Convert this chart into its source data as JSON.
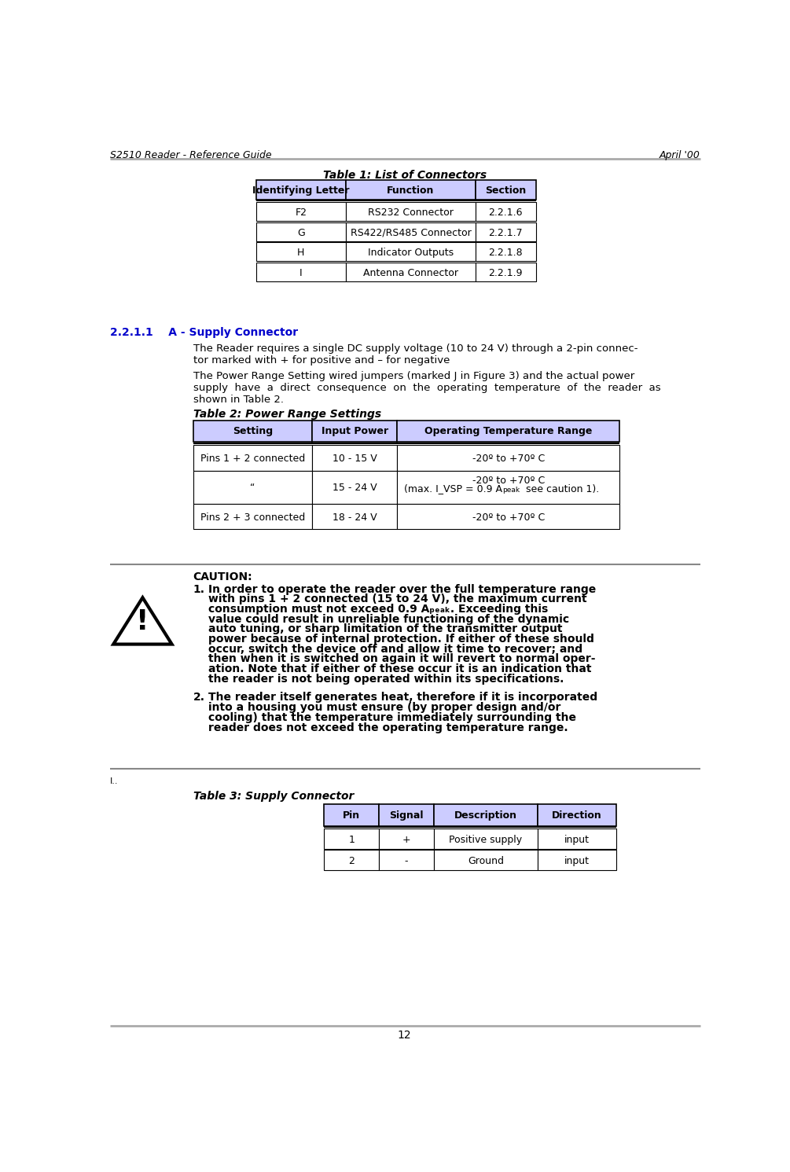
{
  "page_title_left": "S2510 Reader - Reference Guide",
  "page_title_right": "April '00",
  "page_number": "12",
  "table1_title": "Table 1: List of Connectors",
  "table1_header": [
    "Identifying Letter",
    "Function",
    "Section"
  ],
  "table1_header_bg": "#ccccff",
  "table1_rows": [
    [
      "F2",
      "RS232 Connector",
      "2.2.1.6"
    ],
    [
      "G",
      "RS422/RS485 Connector",
      "2.2.1.7"
    ],
    [
      "H",
      "Indicator Outputs",
      "2.2.1.8"
    ],
    [
      "I",
      "Antenna Connector",
      "2.2.1.9"
    ]
  ],
  "section_heading_num": "2.2.1.1",
  "section_heading_txt": "A - Supply Connector",
  "section_heading_color": "#0000cc",
  "para1": "The Reader requires a single DC supply voltage (10 to 24 V) through a 2-pin connec-\ntor marked with + for positive and – for negative",
  "para2": "The Power Range Setting wired jumpers (marked J in Figure 3) and the actual power\nsupply  have  a  direct  consequence  on  the  operating  temperature  of  the  reader  as\nshown in Table 2.",
  "table2_title": "Table 2: Power Range Settings",
  "table2_header": [
    "Setting",
    "Input Power",
    "Operating Temperature Range"
  ],
  "table2_header_bg": "#ccccff",
  "table2_rows": [
    [
      "Pins 1 + 2 connected",
      "10 - 15 V",
      "-20º to +70º C"
    ],
    [
      "“",
      "15 - 24 V",
      "-20º to +70º C"
    ],
    [
      "Pins 2 + 3 connected",
      "18 - 24 V",
      "-20º to +70º C"
    ]
  ],
  "table2_row2_extra": "(max. I_VSP = 0.9 A",
  "table2_row2_sub": "peak",
  "table2_row2_end": " see caution 1).",
  "caution_title": "CAUTION:",
  "caution1_prefix": "1.",
  "caution1_text": "In order to operate the reader over the full temperature range\nwith pins 1 + 2 connected (15 to 24 V), the maximum current\nconsumption must not exceed 0.9 A",
  "caution1_sub": "peak",
  "caution1_end": ". Exceeding this\nvalue could result in unreliable functioning of the dynamic\nauto tuning, or sharp limitation of the transmitter output\npower because of internal protection. If either of these should\noccur, switch the device off and allow it time to recover; and\nthen when it is switched on again it will revert to normal oper-\nation. Note that if either of these occur it is an indication that\nthe reader is not being operated within its specifications.",
  "caution2_prefix": "2.",
  "caution2_text": "The reader itself generates heat, therefore if it is incorporated\ninto a housing you must ensure (by proper design and/or\ncooling) that the temperature immediately surrounding the\nreader does not exceed the operating temperature range.",
  "footnote": "I..",
  "table3_title": "Table 3: Supply Connector",
  "table3_header": [
    "Pin",
    "Signal",
    "Description",
    "Direction"
  ],
  "table3_header_bg": "#ccccff",
  "table3_rows": [
    [
      "1",
      "+",
      "Positive supply",
      "input"
    ],
    [
      "2",
      "-",
      "Ground",
      "input"
    ]
  ],
  "bg_color": "#ffffff",
  "line_color": "#aaaaaa",
  "text_color": "#000000"
}
